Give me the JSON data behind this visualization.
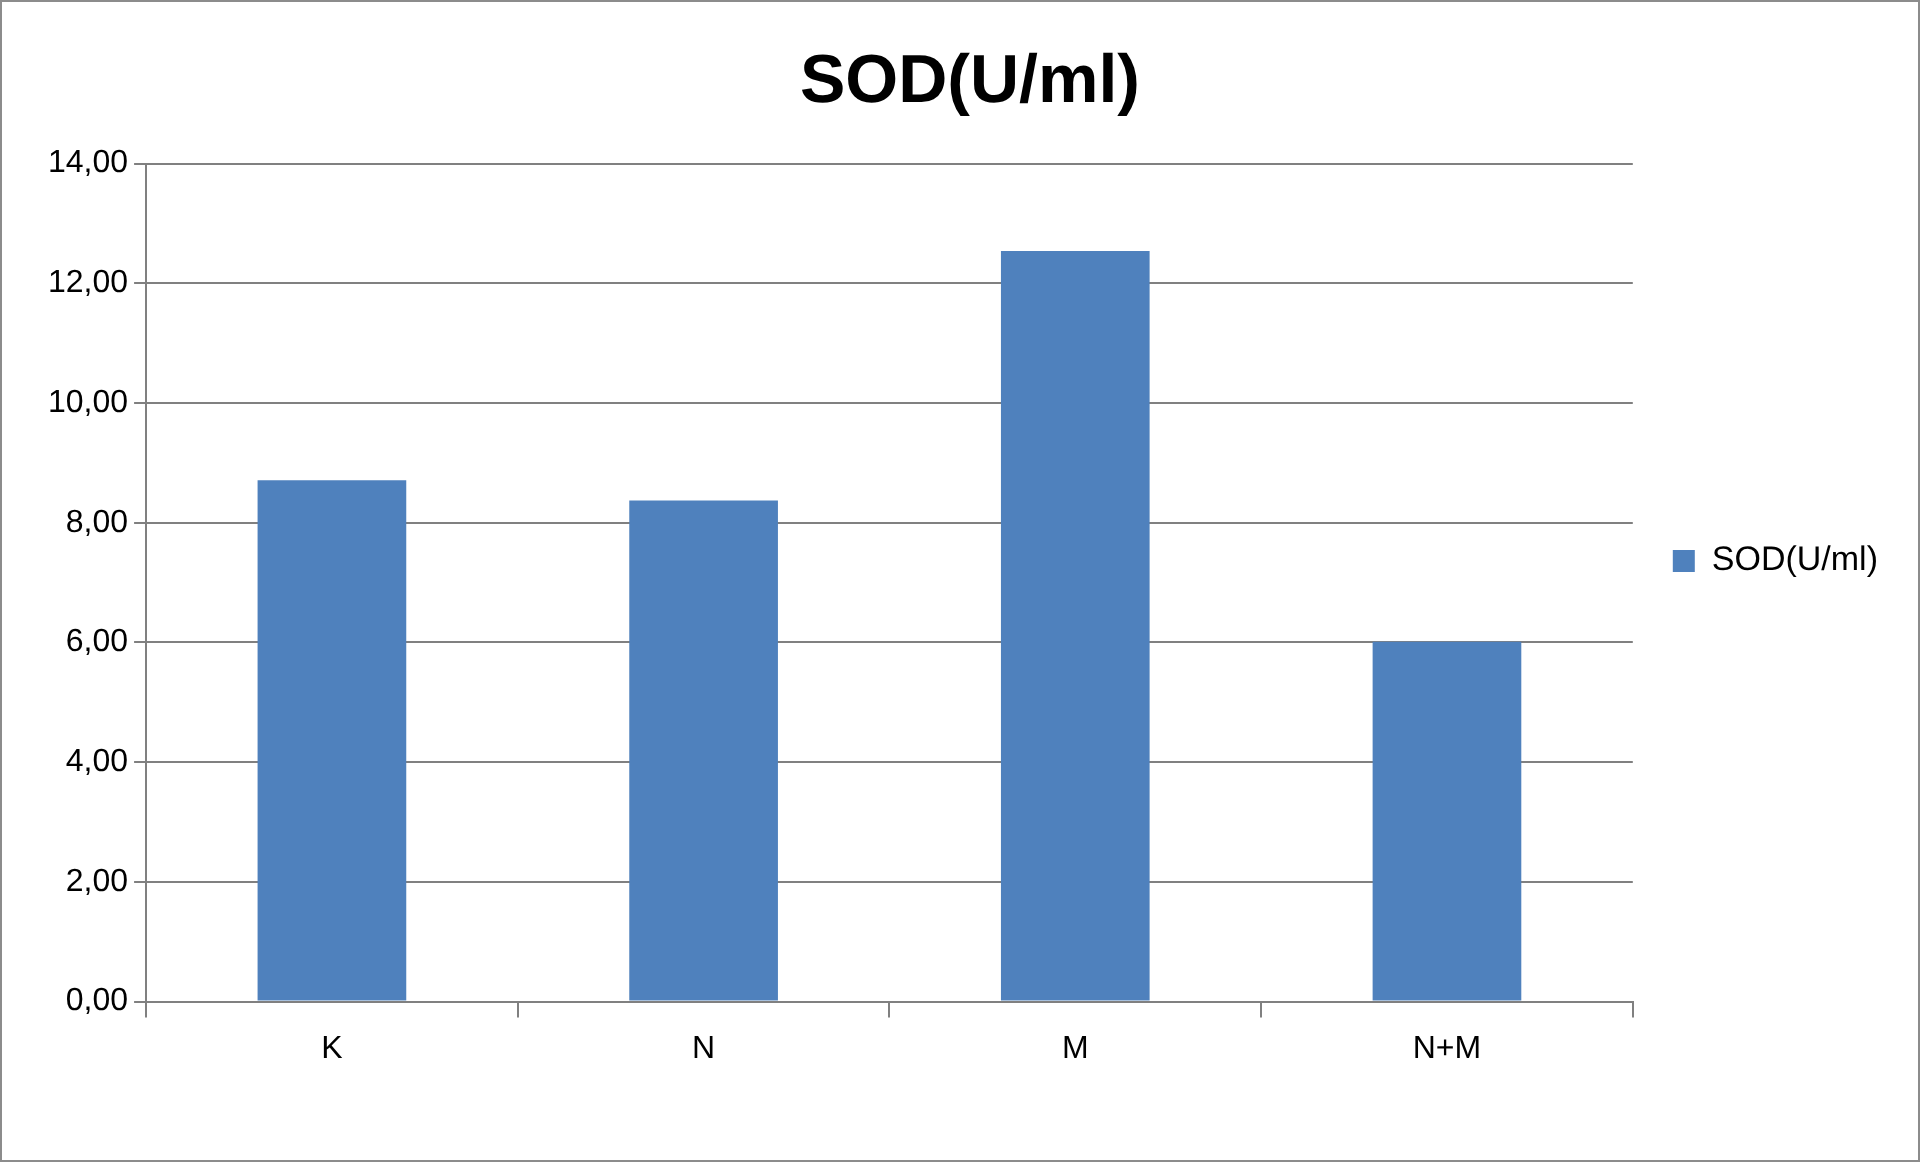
{
  "chart_data": {
    "type": "bar",
    "title": "SOD(U/ml)",
    "categories": [
      "K",
      "N",
      "M",
      "N+M"
    ],
    "series": [
      {
        "name": "SOD(U/ml)",
        "color": "#4f81bd",
        "values": [
          8.71,
          8.37,
          12.54,
          6.01
        ]
      }
    ],
    "ylim": [
      0,
      14
    ],
    "yticks": [
      {
        "value": 0,
        "label": "0,00"
      },
      {
        "value": 2,
        "label": "2,00"
      },
      {
        "value": 4,
        "label": "4,00"
      },
      {
        "value": 6,
        "label": "6,00"
      },
      {
        "value": 8,
        "label": "8,00"
      },
      {
        "value": 10,
        "label": "10,00"
      },
      {
        "value": 12,
        "label": "12,00"
      },
      {
        "value": 14,
        "label": "14,00"
      }
    ],
    "grid": "y",
    "legend": "right"
  }
}
